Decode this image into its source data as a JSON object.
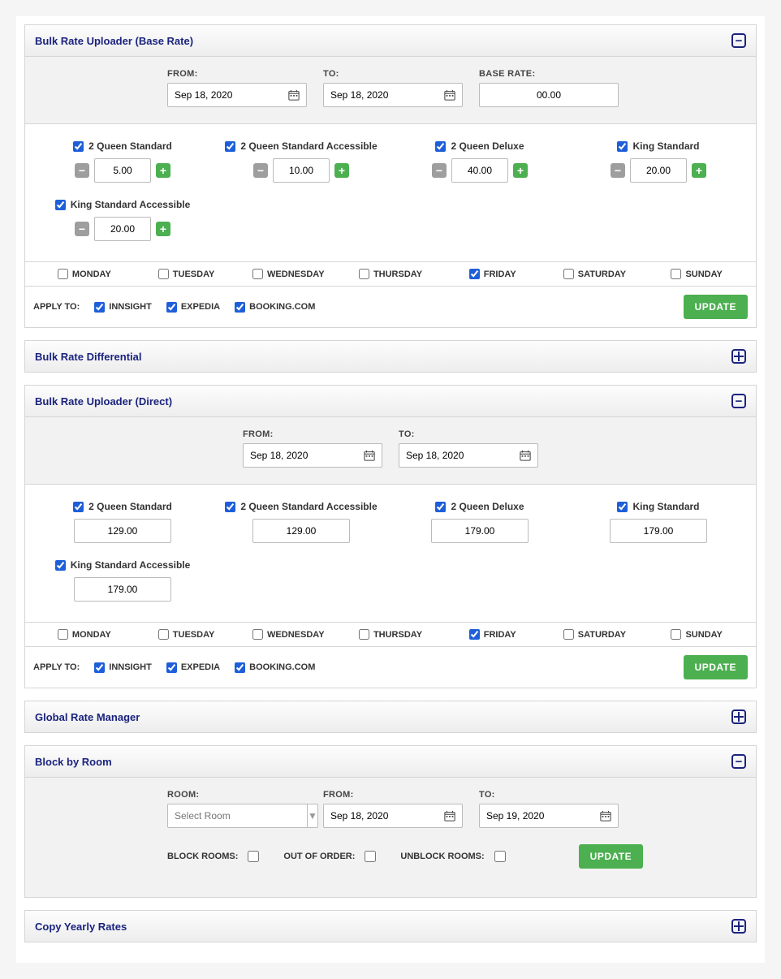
{
  "sections": {
    "base": {
      "title": "Bulk Rate Uploader (Base Rate)",
      "from_label": "FROM:",
      "to_label": "TO:",
      "rate_label": "BASE RATE:",
      "from_date": "Sep 18, 2020",
      "to_date": "Sep 18, 2020",
      "base_rate": "00.00",
      "rooms": [
        {
          "name": "2 Queen Standard",
          "value": "5.00",
          "checked": true
        },
        {
          "name": "2 Queen Standard Accessible",
          "value": "10.00",
          "checked": true
        },
        {
          "name": "2 Queen Deluxe",
          "value": "40.00",
          "checked": true
        },
        {
          "name": "King Standard",
          "value": "20.00",
          "checked": true
        },
        {
          "name": "King Standard Accessible",
          "value": "20.00",
          "checked": true
        }
      ]
    },
    "diff": {
      "title": "Bulk Rate Differential"
    },
    "direct": {
      "title": "Bulk Rate Uploader (Direct)",
      "from_label": "FROM:",
      "to_label": "TO:",
      "from_date": "Sep 18, 2020",
      "to_date": "Sep 18, 2020",
      "rooms": [
        {
          "name": "2 Queen Standard",
          "value": "129.00",
          "checked": true
        },
        {
          "name": "2 Queen Standard Accessible",
          "value": "129.00",
          "checked": true
        },
        {
          "name": "2 Queen Deluxe",
          "value": "179.00",
          "checked": true
        },
        {
          "name": "King Standard",
          "value": "179.00",
          "checked": true
        },
        {
          "name": "King Standard Accessible",
          "value": "179.00",
          "checked": true
        }
      ]
    },
    "global": {
      "title": "Global Rate Manager"
    },
    "block": {
      "title": "Block by Room",
      "room_label": "ROOM:",
      "from_label": "FROM:",
      "to_label": "TO:",
      "room_placeholder": "Select Room",
      "from_date": "Sep 18, 2020",
      "to_date": "Sep 19, 2020",
      "opts": {
        "block": "BLOCK ROOMS:",
        "ooo": "OUT OF ORDER:",
        "unblock": "UNBLOCK ROOMS:"
      }
    },
    "copy": {
      "title": "Copy Yearly Rates"
    }
  },
  "days": [
    {
      "label": "MONDAY",
      "checked": false
    },
    {
      "label": "TUESDAY",
      "checked": false
    },
    {
      "label": "WEDNESDAY",
      "checked": false
    },
    {
      "label": "THURSDAY",
      "checked": false
    },
    {
      "label": "FRIDAY",
      "checked": true
    },
    {
      "label": "SATURDAY",
      "checked": false
    },
    {
      "label": "SUNDAY",
      "checked": false
    }
  ],
  "apply": {
    "label": "APPLY TO:",
    "channels": [
      {
        "label": "INNSIGHT",
        "checked": true
      },
      {
        "label": "EXPEDIA",
        "checked": true
      },
      {
        "label": "BOOKING.COM",
        "checked": true
      }
    ],
    "update": "UPDATE"
  }
}
